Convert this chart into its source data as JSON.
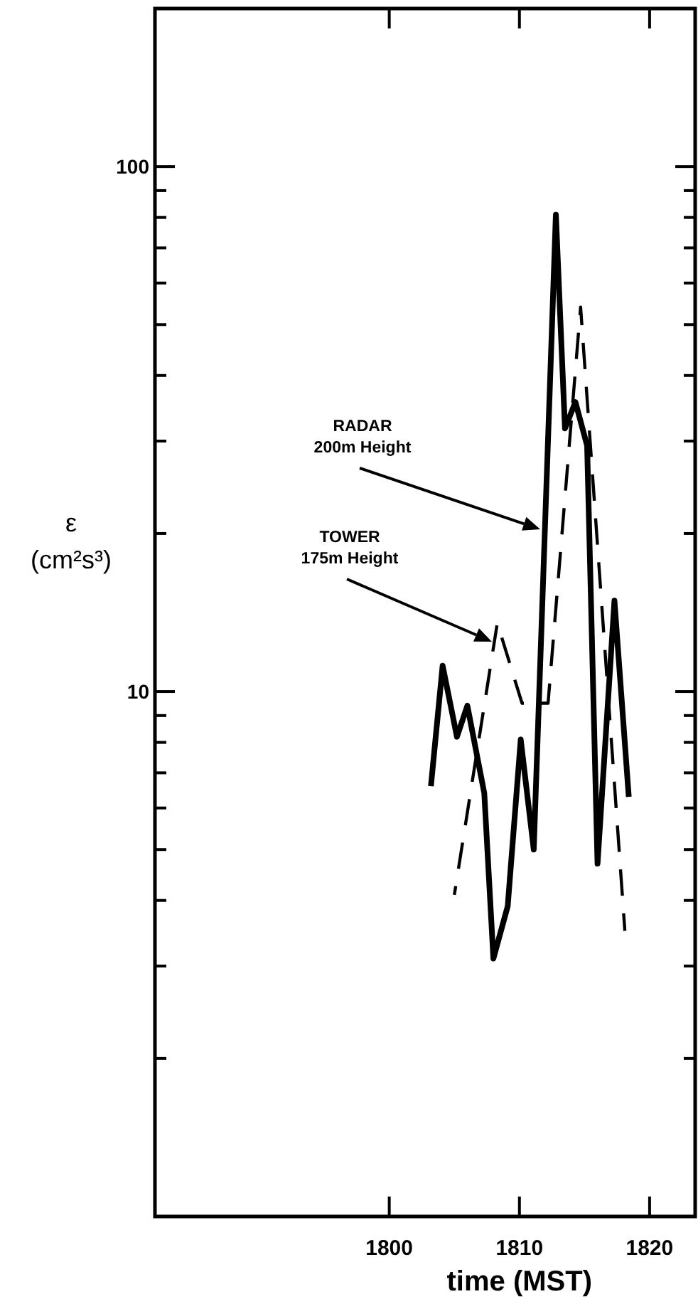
{
  "chart_data": {
    "type": "line",
    "xlabel": "time (MST)",
    "ylabel": "ε\n(cm²s³)",
    "log": "y",
    "xlim": [
      1782,
      1823.5
    ],
    "xticks": [
      1800,
      1810,
      1820
    ],
    "ylim": [
      1,
      200
    ],
    "yticks": [
      {
        "value": 2,
        "label": null
      },
      {
        "value": 3,
        "label": null
      },
      {
        "value": 4,
        "label": null
      },
      {
        "value": 5,
        "label": null
      },
      {
        "value": 6,
        "label": null
      },
      {
        "value": 7,
        "label": null
      },
      {
        "value": 8,
        "label": null
      },
      {
        "value": 9,
        "label": null
      },
      10,
      {
        "value": 20,
        "label": null
      },
      {
        "value": 30,
        "label": null
      },
      {
        "value": 40,
        "label": null
      },
      {
        "value": 50,
        "label": null
      },
      {
        "value": 60,
        "label": null
      },
      {
        "value": 70,
        "label": null
      },
      {
        "value": 80,
        "label": null
      },
      {
        "value": 90,
        "label": null
      },
      100
    ],
    "grid": false,
    "series": [
      {
        "color": "#000000",
        "line_style": "solid",
        "x": [
          1803.2,
          1804.1,
          1805.2,
          1806.0,
          1807.3,
          1808.0,
          1809.1,
          1810.1,
          1811.1,
          1812.8,
          1813.5,
          1814.3,
          1815.2,
          1816.0,
          1817.3,
          1818.4
        ],
        "values": [
          6.6,
          11.2,
          8.2,
          9.4,
          6.4,
          3.1,
          3.9,
          8.1,
          5.0,
          81,
          31.7,
          35.6,
          29.4,
          4.7,
          14.9,
          6.3
        ]
      },
      {
        "color": "#000000",
        "line_style": "dashed",
        "x": [
          1805.0,
          1808.3,
          1810.2,
          1812.2,
          1814.7,
          1818.1
        ],
        "values": [
          4.1,
          13.5,
          9.5,
          9.5,
          54,
          3.5
        ]
      }
    ],
    "annotations": [
      "RADAR\n200m Height",
      "TOWER\n175m Height"
    ]
  }
}
